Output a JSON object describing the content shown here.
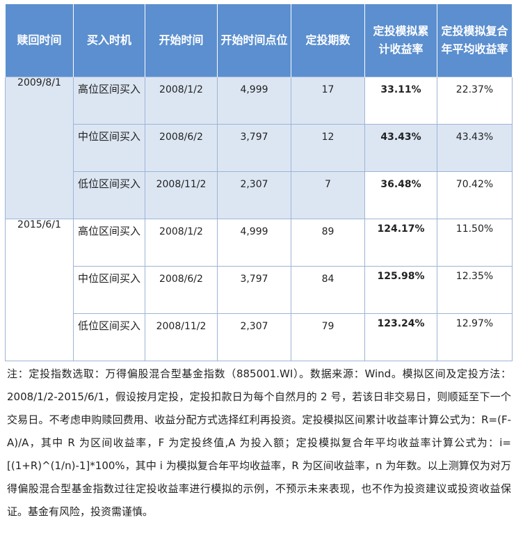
{
  "headers": {
    "redeem_time": "赎回时间",
    "buy_timing": "买入时机",
    "start_time": "开始时间",
    "start_point": "开始时间点位",
    "periods": "定投期数",
    "cum_return": "定投模拟累计收益率",
    "cagr": "定投模拟复合年平均收益率"
  },
  "groups": [
    {
      "redeem": "2009/8/1",
      "rows": [
        {
          "timing": "高位区间买入",
          "start": "2008/1/2",
          "point": "4,999",
          "periods": "17",
          "cum": "33.11%",
          "cagr": "22.37%"
        },
        {
          "timing": "中位区间买入",
          "start": "2008/6/2",
          "point": "3,797",
          "periods": "12",
          "cum": "43.43%",
          "cagr": "43.43%"
        },
        {
          "timing": "低位区间买入",
          "start": "2008/11/2",
          "point": "2,307",
          "periods": "7",
          "cum": "36.48%",
          "cagr": "70.42%"
        }
      ]
    },
    {
      "redeem": "2015/6/1",
      "rows": [
        {
          "timing": "高位区间买入",
          "start": "2008/1/2",
          "point": "4,999",
          "periods": "89",
          "cum": "124.17%",
          "cagr": "11.50%"
        },
        {
          "timing": "中位区间买入",
          "start": "2008/6/2",
          "point": "3,797",
          "periods": "84",
          "cum": "125.98%",
          "cagr": "12.35%"
        },
        {
          "timing": "低位区间买入",
          "start": "2008/11/2",
          "point": "2,307",
          "periods": "79",
          "cum": "123.24%",
          "cagr": "12.97%"
        }
      ]
    }
  ],
  "note": "注：定投指数选取：万得偏股混合型基金指数（885001.WI）。数据来源：Wind。模拟区间及定投方法：2008/1/2-2015/6/1，假设按月定投，定投扣款日为每个自然月的 2 号，若该日非交易日，则顺延至下一个交易日。不考虑申购赎回费用、收益分配方式选择红利再投资。定投模拟区间累计收益率计算公式为：R=(F-A)/A，其中 R 为区间收益率，F 为定投终值,A 为投入额；定投模拟复合年平均收益率计算公式为：i=[(1+R)^(1/n)-1]*100%，其中 i 为模拟复合年平均收益率，R 为区间收益率，n 为年数。以上测算仅为对万得偏股混合型基金指数过往定投收益率进行模拟的示例，不预示未来表现，也不作为投资建议或投资收益保证。基金有风险，投资需谨慎。"
}
